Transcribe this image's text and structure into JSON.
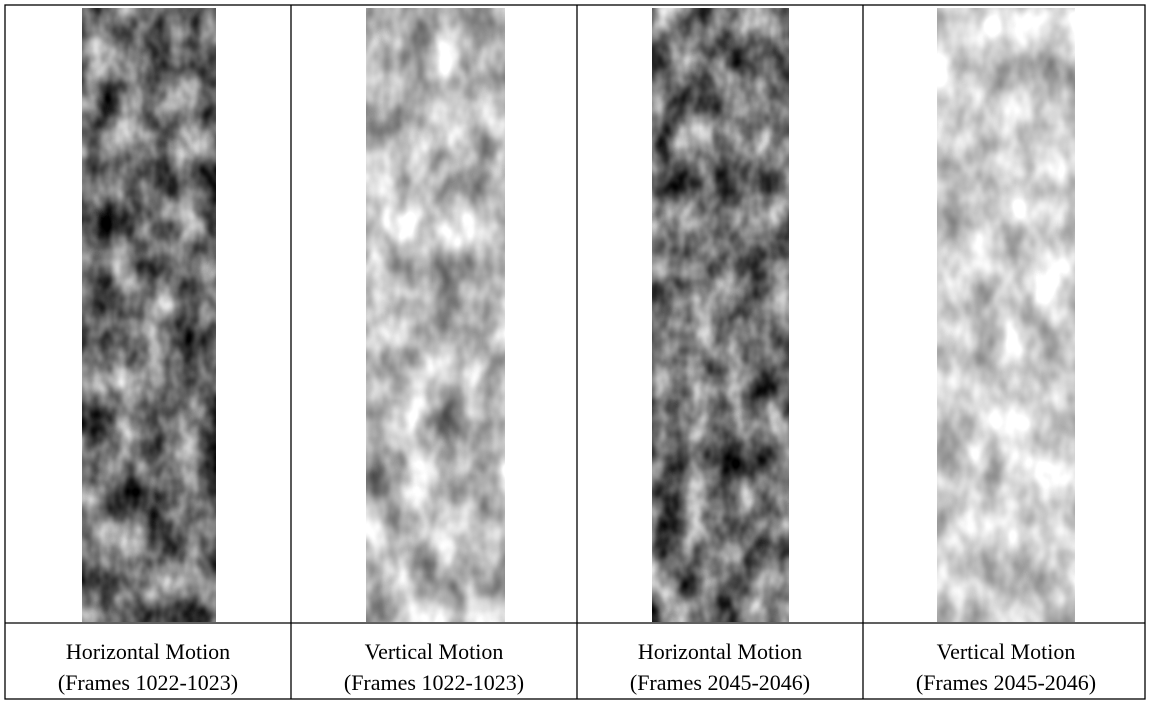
{
  "captions": [
    {
      "title": "Horizontal Motion",
      "frames": "(Frames 1022-1023)"
    },
    {
      "title": "Vertical Motion",
      "frames": "(Frames 1022-1023)"
    },
    {
      "title": "Horizontal Motion",
      "frames": "(Frames 2045-2046)"
    },
    {
      "title": "Vertical Motion",
      "frames": "(Frames 2045-2046)"
    }
  ]
}
